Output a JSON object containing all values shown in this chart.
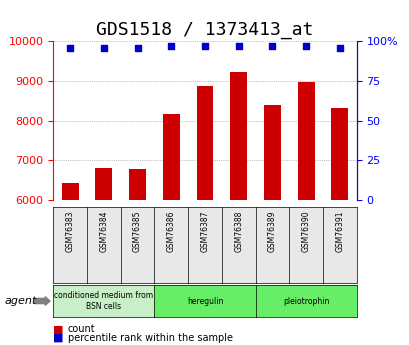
{
  "title": "GDS1518 / 1373413_at",
  "categories": [
    "GSM76383",
    "GSM76384",
    "GSM76385",
    "GSM76386",
    "GSM76387",
    "GSM76388",
    "GSM76389",
    "GSM76390",
    "GSM76391"
  ],
  "counts": [
    6420,
    6820,
    6780,
    8180,
    8880,
    9220,
    8400,
    8980,
    8320
  ],
  "percentiles": [
    96,
    96,
    96,
    97,
    97,
    97,
    97,
    97,
    96
  ],
  "percentile_max": 100,
  "ymin": 6000,
  "ymax": 10000,
  "yticks": [
    6000,
    7000,
    8000,
    9000,
    10000
  ],
  "right_yticks": [
    0,
    25,
    50,
    75,
    100
  ],
  "bar_color": "#cc0000",
  "dot_color": "#0000cc",
  "agent_groups": [
    {
      "label": "conditioned medium from\nBSN cells",
      "start": 0,
      "end": 3,
      "color": "#c8f0c8"
    },
    {
      "label": "heregulin",
      "start": 3,
      "end": 6,
      "color": "#66ee66"
    },
    {
      "label": "pleiotrophin",
      "start": 6,
      "end": 9,
      "color": "#66ee66"
    }
  ],
  "legend_items": [
    {
      "color": "#cc0000",
      "label": "count"
    },
    {
      "color": "#0000cc",
      "label": "percentile rank within the sample"
    }
  ],
  "agent_label": "agent",
  "bg_color": "#e8e8e8",
  "plot_bg": "#ffffff",
  "grid_color": "#888888",
  "title_fontsize": 13,
  "axis_fontsize": 9,
  "tick_fontsize": 8
}
